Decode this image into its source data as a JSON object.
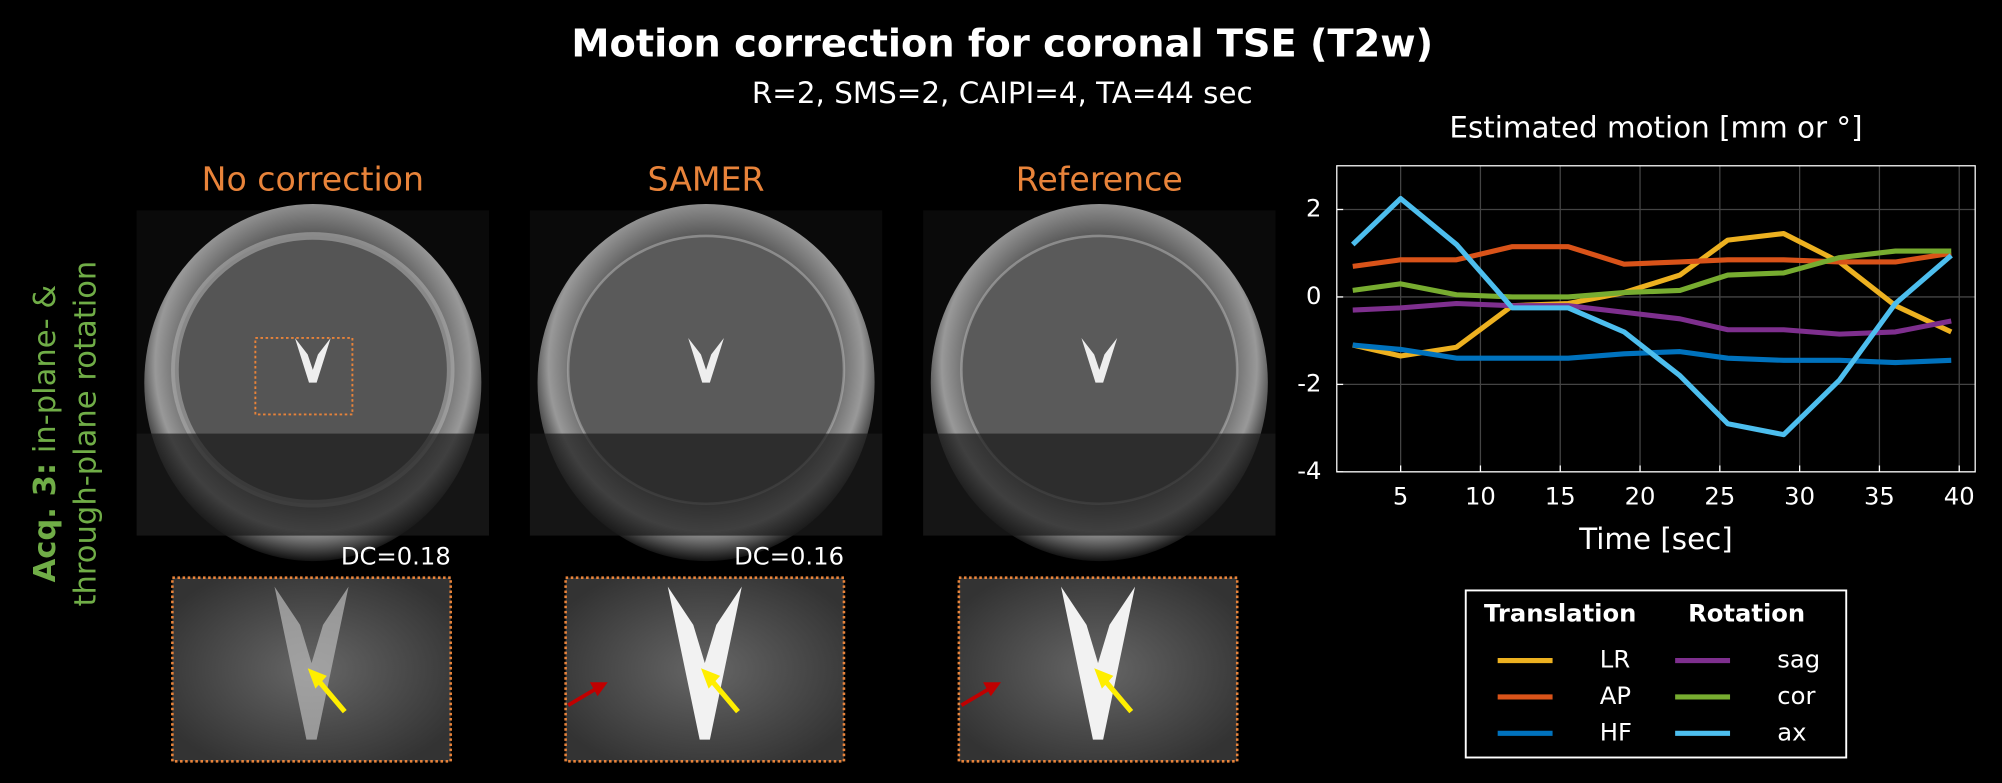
{
  "slide": {
    "title": "Motion correction for coronal TSE (T2w)",
    "subtitle": "R=2, SMS=2, CAIPI=4, TA=44 sec",
    "side_label": {
      "bold": "Acq. 3:",
      "line1": " in-plane- &",
      "line2": "through-plane rotation"
    },
    "columns": [
      "No correction",
      "SAMER",
      "Reference"
    ],
    "dc_labels": [
      "DC=0.18",
      "DC=0.16"
    ]
  },
  "chart_data": {
    "type": "line",
    "title": "Estimated motion [mm or °]",
    "x_label": "Time [sec]",
    "x": [
      2,
      5,
      8.5,
      12,
      15.5,
      19,
      22.5,
      25.5,
      29,
      32.5,
      36,
      39.5
    ],
    "series": [
      {
        "name": "LR",
        "color": "#edb120",
        "values": [
          -1.1,
          -1.35,
          -1.15,
          -0.2,
          -0.15,
          0.1,
          0.5,
          1.3,
          1.45,
          0.8,
          -0.2,
          -0.8
        ]
      },
      {
        "name": "AP",
        "color": "#d95319",
        "values": [
          0.7,
          0.85,
          0.85,
          1.15,
          1.15,
          0.75,
          0.8,
          0.85,
          0.85,
          0.8,
          0.8,
          1.0
        ]
      },
      {
        "name": "HF",
        "color": "#0072bd",
        "values": [
          -1.1,
          -1.2,
          -1.4,
          -1.4,
          -1.4,
          -1.3,
          -1.25,
          -1.4,
          -1.45,
          -1.45,
          -1.5,
          -1.45
        ]
      },
      {
        "name": "sag",
        "color": "#7e2f8e",
        "values": [
          -0.3,
          -0.25,
          -0.15,
          -0.2,
          -0.2,
          -0.35,
          -0.5,
          -0.75,
          -0.75,
          -0.85,
          -0.8,
          -0.55
        ]
      },
      {
        "name": "cor",
        "color": "#77ac30",
        "values": [
          0.15,
          0.3,
          0.05,
          0,
          0,
          0.1,
          0.15,
          0.5,
          0.55,
          0.9,
          1.05,
          1.05
        ]
      },
      {
        "name": "ax",
        "color": "#4dbeee",
        "values": [
          1.2,
          2.25,
          1.2,
          -0.25,
          -0.25,
          -0.8,
          -1.8,
          -2.9,
          -3.15,
          -1.9,
          -0.15,
          0.95
        ]
      }
    ],
    "legend_groups": [
      "Translation",
      "Rotation"
    ],
    "xlim": [
      1,
      41
    ],
    "ylim": [
      -4,
      3
    ],
    "xticks": [
      5,
      10,
      15,
      20,
      25,
      30,
      35,
      40
    ],
    "yticks": [
      -4,
      -2,
      0,
      2
    ],
    "grid": true
  }
}
